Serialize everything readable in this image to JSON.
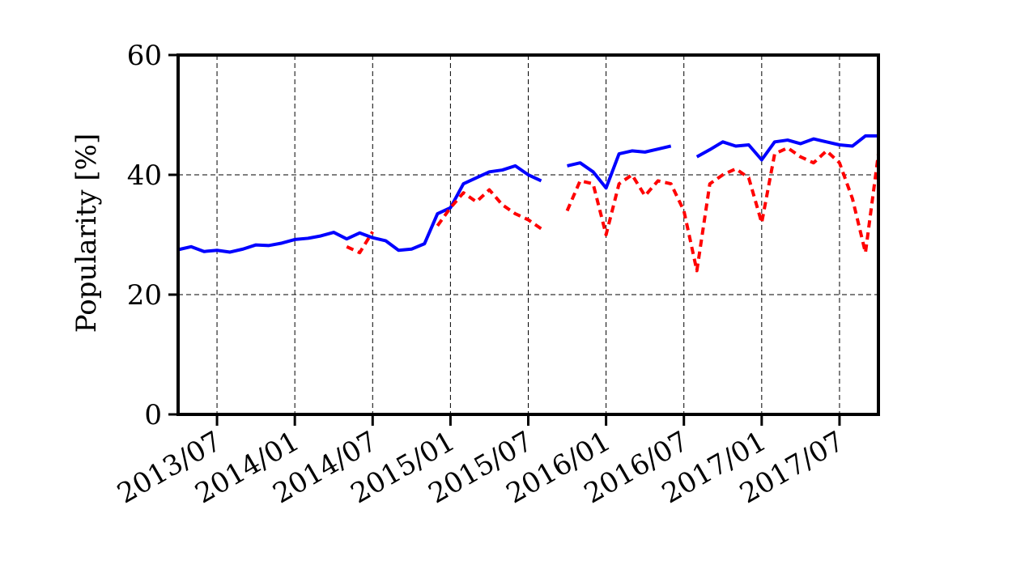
{
  "chart_data": {
    "type": "line",
    "title": "",
    "xlabel": "",
    "ylabel": "Popularity [%]",
    "x_ticks": [
      "2013/07",
      "2014/01",
      "2014/07",
      "2015/01",
      "2015/07",
      "2016/01",
      "2016/07",
      "2017/01",
      "2017/07"
    ],
    "y_ticks": [
      "0",
      "20",
      "40",
      "60"
    ],
    "xlim": [
      "2013/04",
      "2017/10"
    ],
    "ylim": [
      0,
      60
    ],
    "grid": true,
    "legend": "none",
    "series": [
      {
        "color": "#0000ff",
        "style": "solid",
        "points": [
          [
            "2013/04",
            27.5
          ],
          [
            "2013/05",
            28.0
          ],
          [
            "2013/06",
            27.2
          ],
          [
            "2013/07",
            27.4
          ],
          [
            "2013/08",
            27.1
          ],
          [
            "2013/09",
            27.6
          ],
          [
            "2013/10",
            28.3
          ],
          [
            "2013/11",
            28.2
          ],
          [
            "2013/12",
            28.6
          ],
          [
            "2014/01",
            29.2
          ],
          [
            "2014/02",
            29.4
          ],
          [
            "2014/03",
            29.8
          ],
          [
            "2014/04",
            30.4
          ],
          [
            "2014/05",
            29.3
          ],
          [
            "2014/06",
            30.3
          ],
          [
            "2014/07",
            29.5
          ],
          [
            "2014/08",
            29.0
          ],
          [
            "2014/09",
            27.4
          ],
          [
            "2014/10",
            27.6
          ],
          [
            "2014/11",
            28.5
          ],
          [
            "2014/12",
            33.5
          ],
          [
            "2015/01",
            34.5
          ],
          [
            "2015/02",
            38.5
          ],
          [
            "2015/03",
            39.5
          ],
          [
            "2015/04",
            40.5
          ],
          [
            "2015/05",
            40.8
          ],
          [
            "2015/06",
            41.5
          ],
          [
            "2015/07",
            40.0
          ],
          [
            "2015/08",
            39.0
          ],
          [
            "2015/09",
            null
          ],
          [
            "2015/10",
            41.5
          ],
          [
            "2015/11",
            42.0
          ],
          [
            "2015/12",
            40.5
          ],
          [
            "2016/01",
            37.8
          ],
          [
            "2016/02",
            43.5
          ],
          [
            "2016/03",
            44.0
          ],
          [
            "2016/04",
            43.8
          ],
          [
            "2016/05",
            44.3
          ],
          [
            "2016/06",
            44.8
          ],
          [
            "2016/07",
            null
          ],
          [
            "2016/08",
            43.0
          ],
          [
            "2016/09",
            44.2
          ],
          [
            "2016/10",
            45.5
          ],
          [
            "2016/11",
            44.8
          ],
          [
            "2016/12",
            45.0
          ],
          [
            "2017/01",
            42.5
          ],
          [
            "2017/02",
            45.5
          ],
          [
            "2017/03",
            45.8
          ],
          [
            "2017/04",
            45.2
          ],
          [
            "2017/05",
            46.0
          ],
          [
            "2017/06",
            45.5
          ],
          [
            "2017/07",
            45.0
          ],
          [
            "2017/08",
            44.8
          ],
          [
            "2017/09",
            46.5
          ],
          [
            "2017/10",
            46.5
          ]
        ]
      },
      {
        "color": "#ff0000",
        "style": "dashed",
        "points": [
          [
            "2014/05",
            28.0
          ],
          [
            "2014/06",
            27.0
          ],
          [
            "2014/07",
            30.5
          ],
          [
            "2014/08",
            null
          ],
          [
            "2014/12",
            31.5
          ],
          [
            "2015/01",
            34.5
          ],
          [
            "2015/02",
            37.0
          ],
          [
            "2015/03",
            35.5
          ],
          [
            "2015/04",
            37.5
          ],
          [
            "2015/05",
            35.0
          ],
          [
            "2015/06",
            33.5
          ],
          [
            "2015/07",
            32.5
          ],
          [
            "2015/08",
            31.0
          ],
          [
            "2015/09",
            null
          ],
          [
            "2015/10",
            34.0
          ],
          [
            "2015/11",
            39.0
          ],
          [
            "2015/12",
            38.5
          ],
          [
            "2016/01",
            30.0
          ],
          [
            "2016/02",
            38.5
          ],
          [
            "2016/03",
            40.0
          ],
          [
            "2016/04",
            36.5
          ],
          [
            "2016/05",
            39.0
          ],
          [
            "2016/06",
            38.5
          ],
          [
            "2016/07",
            34.0
          ],
          [
            "2016/08",
            24.0
          ],
          [
            "2016/09",
            38.5
          ],
          [
            "2016/10",
            40.0
          ],
          [
            "2016/11",
            41.0
          ],
          [
            "2016/12",
            39.5
          ],
          [
            "2017/01",
            32.0
          ],
          [
            "2017/02",
            43.5
          ],
          [
            "2017/03",
            44.5
          ],
          [
            "2017/04",
            43.0
          ],
          [
            "2017/05",
            42.0
          ],
          [
            "2017/06",
            44.0
          ],
          [
            "2017/07",
            42.0
          ],
          [
            "2017/08",
            36.0
          ],
          [
            "2017/09",
            27.0
          ],
          [
            "2017/10",
            43.5
          ]
        ]
      }
    ]
  }
}
